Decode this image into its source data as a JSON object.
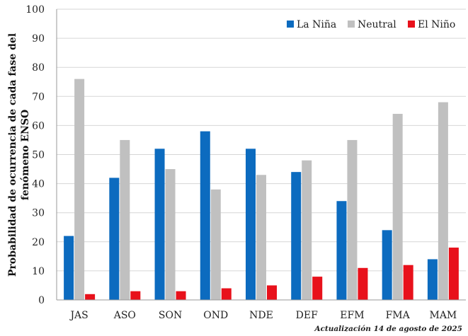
{
  "chart_data": {
    "type": "bar",
    "title": "",
    "xlabel": "",
    "ylabel_lines": [
      "Probabilidad de ocurrencia  de cada fase del",
      "fenómeno ENSO"
    ],
    "ylim": [
      0,
      100
    ],
    "yticks": [
      0,
      10,
      20,
      30,
      40,
      50,
      60,
      70,
      80,
      90,
      100
    ],
    "grid": true,
    "legend_position": "top-right",
    "categories": [
      "JAS",
      "ASO",
      "SON",
      "OND",
      "NDE",
      "DEF",
      "EFM",
      "FMA",
      "MAM"
    ],
    "series": [
      {
        "name": "La Niña",
        "color": "#0c6bbf",
        "values": [
          22,
          42,
          52,
          58,
          52,
          44,
          34,
          24,
          14
        ]
      },
      {
        "name": "Neutral",
        "color": "#c0c0c0",
        "values": [
          76,
          55,
          45,
          38,
          43,
          48,
          55,
          64,
          68
        ]
      },
      {
        "name": "El Niño",
        "color": "#e8111b",
        "values": [
          2,
          3,
          3,
          4,
          5,
          8,
          11,
          12,
          18
        ]
      }
    ],
    "annotation": "Actualización 14 de agosto de 2025"
  }
}
